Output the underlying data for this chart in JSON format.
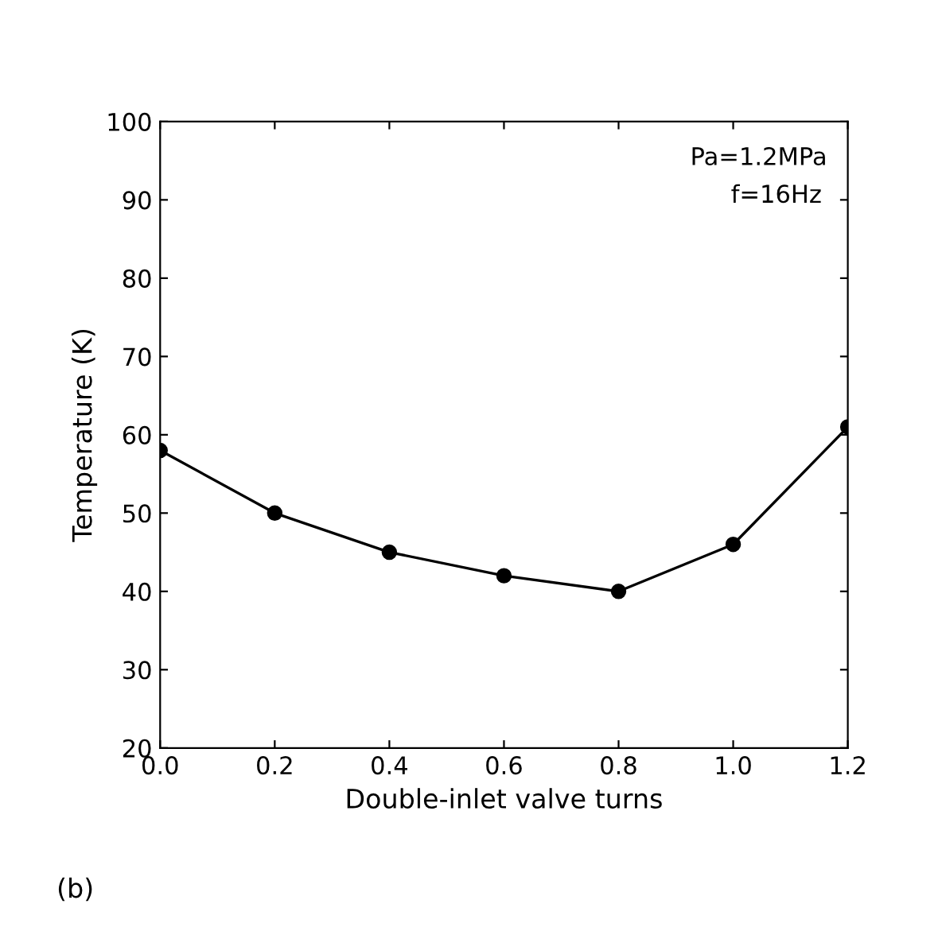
{
  "chart_data": {
    "type": "line",
    "xlabel": "Double-inlet valve turns",
    "ylabel": "Temperature (K)",
    "x": [
      0.0,
      0.2,
      0.4,
      0.6,
      0.8,
      1.0,
      1.2
    ],
    "series": [
      {
        "color": "#000000",
        "values": [
          58,
          50,
          45,
          42,
          40,
          46,
          61
        ]
      }
    ],
    "xlim": [
      0.0,
      1.2
    ],
    "ylim": [
      20,
      100
    ],
    "xticks": [
      {
        "value": 0.0,
        "label": "0.0"
      },
      {
        "value": 0.2,
        "label": "0.2"
      },
      {
        "value": 0.4,
        "label": "0.4"
      },
      {
        "value": 0.6,
        "label": "0.6"
      },
      {
        "value": 0.8,
        "label": "0.8"
      },
      {
        "value": 1.0,
        "label": "1.0"
      },
      {
        "value": 1.2,
        "label": "1.2"
      }
    ],
    "yticks": [
      20,
      30,
      40,
      50,
      60,
      70,
      80,
      90,
      100
    ],
    "marker": "circle",
    "line_style": "solid",
    "grid": false,
    "legend": false,
    "annotations": [
      "Pa=1.2MPa",
      "f=16Hz",
      "(b)"
    ]
  }
}
